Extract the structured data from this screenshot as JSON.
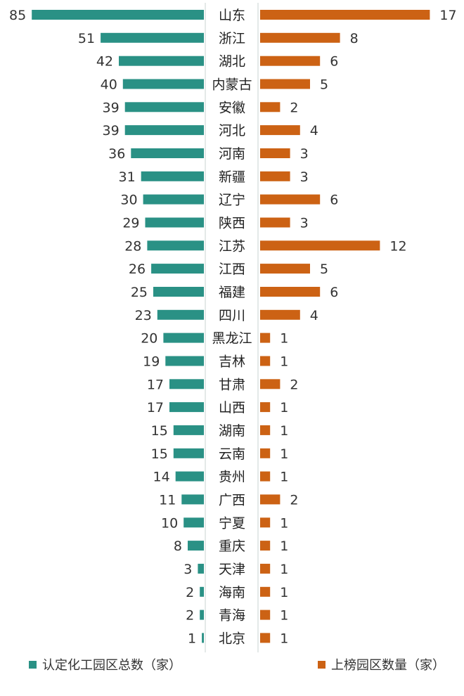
{
  "chart_data": {
    "type": "bar",
    "layout": "butterfly",
    "categories": [
      "山东",
      "浙江",
      "湖北",
      "内蒙古",
      "安徽",
      "河北",
      "河南",
      "新疆",
      "辽宁",
      "陕西",
      "江苏",
      "江西",
      "福建",
      "四川",
      "黑龙江",
      "吉林",
      "甘肃",
      "山西",
      "湖南",
      "云南",
      "贵州",
      "广西",
      "宁夏",
      "重庆",
      "天津",
      "海南",
      "青海",
      "北京"
    ],
    "series": [
      {
        "name": "认定化工园区总数（家）",
        "color": "#2a9185",
        "values": [
          85,
          51,
          42,
          40,
          39,
          39,
          36,
          31,
          30,
          29,
          28,
          26,
          25,
          23,
          20,
          19,
          17,
          17,
          15,
          15,
          14,
          11,
          10,
          8,
          3,
          2,
          2,
          1
        ]
      },
      {
        "name": "上榜园区数量（家）",
        "color": "#cc6214",
        "values": [
          17,
          8,
          6,
          5,
          2,
          4,
          3,
          3,
          6,
          3,
          12,
          5,
          6,
          4,
          1,
          1,
          2,
          1,
          1,
          1,
          1,
          2,
          1,
          1,
          1,
          1,
          1,
          1
        ]
      }
    ],
    "legend": "bottom",
    "grid": false
  }
}
